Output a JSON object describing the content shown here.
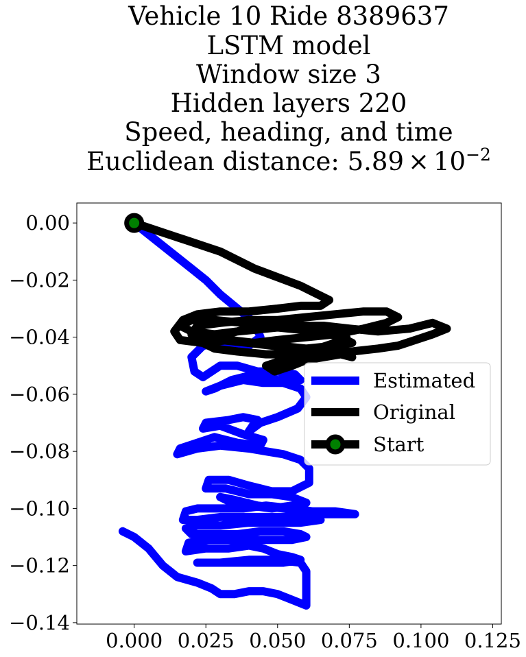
{
  "chart_data": {
    "type": "line",
    "title_lines": [
      "Vehicle 10 Ride 8389637",
      "LSTM model",
      "Window size 3",
      "Hidden layers 220",
      "Speed, heading, and time"
    ],
    "title_distance": {
      "prefix": "Euclidean distance: 5.89",
      "times": "×",
      "base": "10",
      "exponent": "−2"
    },
    "xlim": [
      -0.02,
      0.128
    ],
    "ylim": [
      -0.1405,
      0.007
    ],
    "xticks": [
      {
        "value": 0.0,
        "label": "0.000"
      },
      {
        "value": 0.025,
        "label": "0.025"
      },
      {
        "value": 0.05,
        "label": "0.050"
      },
      {
        "value": 0.075,
        "label": "0.075"
      },
      {
        "value": 0.1,
        "label": "0.100"
      },
      {
        "value": 0.125,
        "label": "0.125"
      }
    ],
    "yticks": [
      {
        "value": 0.0,
        "label": "0.00"
      },
      {
        "value": -0.02,
        "label": "−0.02"
      },
      {
        "value": -0.04,
        "label": "−0.04"
      },
      {
        "value": -0.06,
        "label": "−0.06"
      },
      {
        "value": -0.08,
        "label": "−0.08"
      },
      {
        "value": -0.1,
        "label": "−0.10"
      },
      {
        "value": -0.12,
        "label": "−0.12"
      },
      {
        "value": -0.14,
        "label": "−0.14"
      }
    ],
    "grid": false,
    "legend_position": "center-right",
    "series": [
      {
        "name": "Estimated",
        "color": "#0000ff",
        "points": [
          [
            0.0,
            0.0
          ],
          [
            0.005,
            -0.004
          ],
          [
            0.01,
            -0.008
          ],
          [
            0.015,
            -0.012
          ],
          [
            0.02,
            -0.016
          ],
          [
            0.025,
            -0.02
          ],
          [
            0.03,
            -0.025
          ],
          [
            0.036,
            -0.03
          ],
          [
            0.042,
            -0.035
          ],
          [
            0.044,
            -0.04
          ],
          [
            0.04,
            -0.043
          ],
          [
            0.032,
            -0.042
          ],
          [
            0.024,
            -0.043
          ],
          [
            0.02,
            -0.047
          ],
          [
            0.021,
            -0.052
          ],
          [
            0.024,
            -0.054
          ],
          [
            0.03,
            -0.05
          ],
          [
            0.036,
            -0.05
          ],
          [
            0.043,
            -0.052
          ],
          [
            0.05,
            -0.052
          ],
          [
            0.056,
            -0.053
          ],
          [
            0.058,
            -0.055
          ],
          [
            0.05,
            -0.055
          ],
          [
            0.042,
            -0.053
          ],
          [
            0.034,
            -0.055
          ],
          [
            0.028,
            -0.058
          ],
          [
            0.025,
            -0.059
          ],
          [
            0.03,
            -0.057
          ],
          [
            0.038,
            -0.055
          ],
          [
            0.045,
            -0.056
          ],
          [
            0.052,
            -0.056
          ],
          [
            0.058,
            -0.058
          ],
          [
            0.06,
            -0.061
          ],
          [
            0.057,
            -0.065
          ],
          [
            0.05,
            -0.068
          ],
          [
            0.044,
            -0.07
          ],
          [
            0.04,
            -0.073
          ],
          [
            0.042,
            -0.07
          ],
          [
            0.043,
            -0.069
          ],
          [
            0.038,
            -0.068
          ],
          [
            0.033,
            -0.069
          ],
          [
            0.025,
            -0.07
          ],
          [
            0.024,
            -0.072
          ],
          [
            0.03,
            -0.071
          ],
          [
            0.038,
            -0.074
          ],
          [
            0.045,
            -0.076
          ],
          [
            0.044,
            -0.078
          ],
          [
            0.036,
            -0.077
          ],
          [
            0.028,
            -0.075
          ],
          [
            0.022,
            -0.077
          ],
          [
            0.016,
            -0.079
          ],
          [
            0.015,
            -0.081
          ],
          [
            0.022,
            -0.079
          ],
          [
            0.03,
            -0.078
          ],
          [
            0.04,
            -0.079
          ],
          [
            0.046,
            -0.08
          ],
          [
            0.052,
            -0.081
          ],
          [
            0.058,
            -0.083
          ],
          [
            0.061,
            -0.086
          ],
          [
            0.061,
            -0.091
          ],
          [
            0.055,
            -0.094
          ],
          [
            0.048,
            -0.094
          ],
          [
            0.04,
            -0.092
          ],
          [
            0.033,
            -0.09
          ],
          [
            0.026,
            -0.09
          ],
          [
            0.025,
            -0.093
          ],
          [
            0.032,
            -0.093
          ],
          [
            0.04,
            -0.095
          ],
          [
            0.048,
            -0.095
          ],
          [
            0.055,
            -0.096
          ],
          [
            0.06,
            -0.098
          ],
          [
            0.055,
            -0.099
          ],
          [
            0.048,
            -0.1
          ],
          [
            0.04,
            -0.099
          ],
          [
            0.034,
            -0.098
          ],
          [
            0.03,
            -0.096
          ],
          [
            0.035,
            -0.097
          ],
          [
            0.043,
            -0.099
          ],
          [
            0.052,
            -0.1
          ],
          [
            0.06,
            -0.101
          ],
          [
            0.066,
            -0.102
          ],
          [
            0.072,
            -0.102
          ],
          [
            0.077,
            -0.102
          ],
          [
            0.07,
            -0.101
          ],
          [
            0.062,
            -0.101
          ],
          [
            0.055,
            -0.1
          ],
          [
            0.046,
            -0.099
          ],
          [
            0.038,
            -0.1
          ],
          [
            0.03,
            -0.1
          ],
          [
            0.022,
            -0.1
          ],
          [
            0.018,
            -0.101
          ],
          [
            0.017,
            -0.104
          ],
          [
            0.022,
            -0.104
          ],
          [
            0.03,
            -0.103
          ],
          [
            0.04,
            -0.103
          ],
          [
            0.05,
            -0.103
          ],
          [
            0.058,
            -0.103
          ],
          [
            0.065,
            -0.104
          ],
          [
            0.058,
            -0.105
          ],
          [
            0.05,
            -0.105
          ],
          [
            0.04,
            -0.105
          ],
          [
            0.03,
            -0.106
          ],
          [
            0.022,
            -0.106
          ],
          [
            0.018,
            -0.107
          ],
          [
            0.02,
            -0.109
          ],
          [
            0.028,
            -0.109
          ],
          [
            0.036,
            -0.109
          ],
          [
            0.044,
            -0.108
          ],
          [
            0.052,
            -0.108
          ],
          [
            0.058,
            -0.109
          ],
          [
            0.06,
            -0.11
          ],
          [
            0.055,
            -0.111
          ],
          [
            0.046,
            -0.111
          ],
          [
            0.036,
            -0.111
          ],
          [
            0.026,
            -0.111
          ],
          [
            0.019,
            -0.112
          ],
          [
            0.018,
            -0.115
          ],
          [
            0.025,
            -0.114
          ],
          [
            0.033,
            -0.114
          ],
          [
            0.04,
            -0.113
          ],
          [
            0.045,
            -0.114
          ],
          [
            0.05,
            -0.116
          ],
          [
            0.055,
            -0.117
          ],
          [
            0.058,
            -0.118
          ],
          [
            0.052,
            -0.119
          ],
          [
            0.044,
            -0.119
          ],
          [
            0.035,
            -0.119
          ],
          [
            0.027,
            -0.119
          ],
          [
            0.022,
            -0.119
          ],
          [
            0.03,
            -0.119
          ],
          [
            0.04,
            -0.118
          ],
          [
            0.05,
            -0.118
          ],
          [
            0.058,
            -0.119
          ],
          [
            0.06,
            -0.122
          ],
          [
            0.06,
            -0.126
          ],
          [
            0.06,
            -0.13
          ],
          [
            0.06,
            -0.134
          ],
          [
            0.055,
            -0.132
          ],
          [
            0.05,
            -0.13
          ],
          [
            0.045,
            -0.129
          ],
          [
            0.04,
            -0.129
          ],
          [
            0.035,
            -0.13
          ],
          [
            0.03,
            -0.13
          ],
          [
            0.027,
            -0.128
          ],
          [
            0.022,
            -0.126
          ],
          [
            0.015,
            -0.124
          ],
          [
            0.01,
            -0.12
          ],
          [
            0.005,
            -0.114
          ],
          [
            0.0,
            -0.11
          ],
          [
            -0.004,
            -0.108
          ]
        ]
      },
      {
        "name": "Original",
        "color": "#000000",
        "points": [
          [
            0.0,
            0.0
          ],
          [
            0.006,
            -0.002
          ],
          [
            0.012,
            -0.004
          ],
          [
            0.018,
            -0.006
          ],
          [
            0.024,
            -0.008
          ],
          [
            0.03,
            -0.01
          ],
          [
            0.036,
            -0.013
          ],
          [
            0.042,
            -0.016
          ],
          [
            0.05,
            -0.019
          ],
          [
            0.058,
            -0.022
          ],
          [
            0.064,
            -0.025
          ],
          [
            0.068,
            -0.027
          ],
          [
            0.065,
            -0.029
          ],
          [
            0.058,
            -0.029
          ],
          [
            0.05,
            -0.03
          ],
          [
            0.04,
            -0.031
          ],
          [
            0.03,
            -0.031
          ],
          [
            0.022,
            -0.032
          ],
          [
            0.017,
            -0.034
          ],
          [
            0.014,
            -0.038
          ],
          [
            0.016,
            -0.041
          ],
          [
            0.024,
            -0.042
          ],
          [
            0.033,
            -0.041
          ],
          [
            0.042,
            -0.042
          ],
          [
            0.05,
            -0.041
          ],
          [
            0.06,
            -0.04
          ],
          [
            0.07,
            -0.039
          ],
          [
            0.08,
            -0.037
          ],
          [
            0.088,
            -0.035
          ],
          [
            0.092,
            -0.033
          ],
          [
            0.088,
            -0.031
          ],
          [
            0.08,
            -0.031
          ],
          [
            0.07,
            -0.032
          ],
          [
            0.06,
            -0.033
          ],
          [
            0.05,
            -0.034
          ],
          [
            0.04,
            -0.034
          ],
          [
            0.03,
            -0.035
          ],
          [
            0.022,
            -0.036
          ],
          [
            0.02,
            -0.039
          ],
          [
            0.027,
            -0.04
          ],
          [
            0.036,
            -0.038
          ],
          [
            0.046,
            -0.037
          ],
          [
            0.056,
            -0.036
          ],
          [
            0.066,
            -0.036
          ],
          [
            0.075,
            -0.037
          ],
          [
            0.085,
            -0.038
          ],
          [
            0.096,
            -0.037
          ],
          [
            0.104,
            -0.035
          ],
          [
            0.109,
            -0.037
          ],
          [
            0.104,
            -0.039
          ],
          [
            0.098,
            -0.041
          ],
          [
            0.092,
            -0.043
          ],
          [
            0.085,
            -0.044
          ],
          [
            0.076,
            -0.045
          ],
          [
            0.066,
            -0.046
          ],
          [
            0.056,
            -0.046
          ],
          [
            0.046,
            -0.046
          ],
          [
            0.036,
            -0.045
          ],
          [
            0.028,
            -0.044
          ],
          [
            0.024,
            -0.042
          ],
          [
            0.03,
            -0.041
          ],
          [
            0.04,
            -0.042
          ],
          [
            0.05,
            -0.043
          ],
          [
            0.06,
            -0.044
          ],
          [
            0.07,
            -0.043
          ],
          [
            0.076,
            -0.042
          ],
          [
            0.072,
            -0.04
          ],
          [
            0.064,
            -0.038
          ],
          [
            0.054,
            -0.037
          ],
          [
            0.044,
            -0.036
          ],
          [
            0.036,
            -0.038
          ],
          [
            0.028,
            -0.039
          ],
          [
            0.02,
            -0.038
          ],
          [
            0.016,
            -0.036
          ],
          [
            0.02,
            -0.034
          ],
          [
            0.028,
            -0.034
          ],
          [
            0.038,
            -0.035
          ],
          [
            0.048,
            -0.036
          ],
          [
            0.058,
            -0.037
          ],
          [
            0.068,
            -0.038
          ],
          [
            0.074,
            -0.04
          ],
          [
            0.07,
            -0.042
          ],
          [
            0.064,
            -0.044
          ],
          [
            0.058,
            -0.046
          ],
          [
            0.052,
            -0.048
          ],
          [
            0.046,
            -0.05
          ],
          [
            0.049,
            -0.052
          ],
          [
            0.055,
            -0.05
          ],
          [
            0.06,
            -0.048
          ],
          [
            0.066,
            -0.047
          ],
          [
            0.072,
            -0.046
          ],
          [
            0.076,
            -0.047
          ],
          [
            0.072,
            -0.046
          ],
          [
            0.064,
            -0.045
          ],
          [
            0.056,
            -0.044
          ],
          [
            0.048,
            -0.043
          ],
          [
            0.04,
            -0.042
          ],
          [
            0.034,
            -0.041
          ],
          [
            0.03,
            -0.04
          ]
        ]
      }
    ],
    "start_point": {
      "name": "Start",
      "x": 0.0,
      "y": 0.0,
      "color": "#008000",
      "edge_color": "#000000"
    }
  }
}
